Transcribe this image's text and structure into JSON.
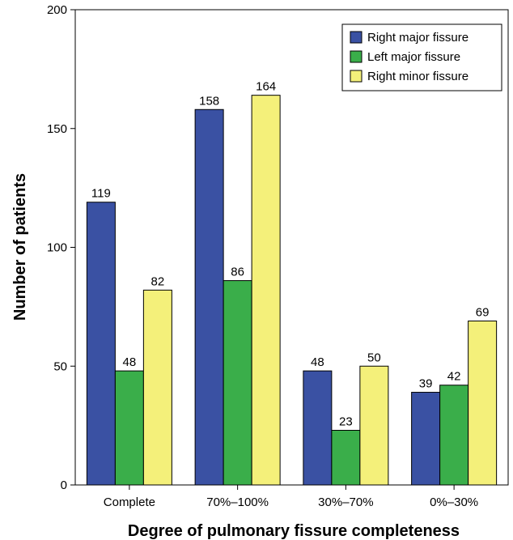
{
  "chart_data": {
    "type": "bar",
    "title": "",
    "xlabel": "Degree of pulmonary fissure completeness",
    "ylabel": "Number of patients",
    "categories": [
      "Complete",
      "70%–100%",
      "30%–70%",
      "0%–30%"
    ],
    "series": [
      {
        "name": "Right major fissure",
        "values": [
          119,
          158,
          48,
          39
        ],
        "color": "#3a51a3"
      },
      {
        "name": "Left major fissure",
        "values": [
          48,
          86,
          23,
          42
        ],
        "color": "#3aae4a"
      },
      {
        "name": "Right minor fissure",
        "values": [
          82,
          164,
          50,
          69
        ],
        "color": "#f4f07a"
      }
    ],
    "ylim": [
      0,
      200
    ],
    "yticks": [
      0,
      50,
      100,
      150,
      200
    ],
    "grid": false,
    "legend_position": "top-right",
    "data_labels": true
  }
}
